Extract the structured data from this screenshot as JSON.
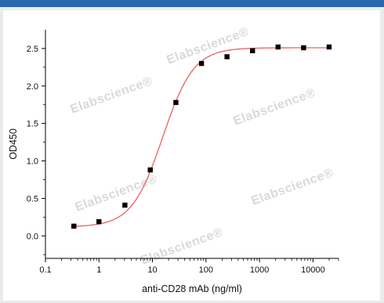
{
  "watermark": "Elabscience®",
  "chart_data": {
    "type": "scatter",
    "title": "",
    "xlabel": "anti-CD28 mAb (ng/ml)",
    "ylabel": "OD450",
    "xscale": "log",
    "xlim": [
      0.1,
      30000
    ],
    "ylim": [
      -0.3,
      2.75
    ],
    "xticks": [
      0.1,
      1,
      10,
      100,
      1000,
      10000
    ],
    "xtick_labels": [
      "0.1",
      "1",
      "10",
      "100",
      "1000",
      "10000"
    ],
    "yticks": [
      0.0,
      0.5,
      1.0,
      1.5,
      2.0,
      2.5
    ],
    "ytick_labels": [
      "0.0",
      "0.5",
      "1.0",
      "1.5",
      "2.0",
      "2.5"
    ],
    "grid": false,
    "legend": "none",
    "series": [
      {
        "x": [
          0.34,
          1,
          3.05,
          9.1,
          27.4,
          82.3,
          247,
          741,
          2222,
          6667,
          20000
        ],
        "y": [
          0.13,
          0.19,
          0.41,
          0.88,
          1.78,
          2.3,
          2.39,
          2.47,
          2.52,
          2.51,
          2.52
        ],
        "marker": "square",
        "color": "#000000"
      }
    ],
    "fit_curve": {
      "model": "4PL",
      "bottom": 0.12,
      "top": 2.51,
      "ec50": 15.5,
      "hill": 1.5,
      "color": "#e8635e"
    }
  }
}
